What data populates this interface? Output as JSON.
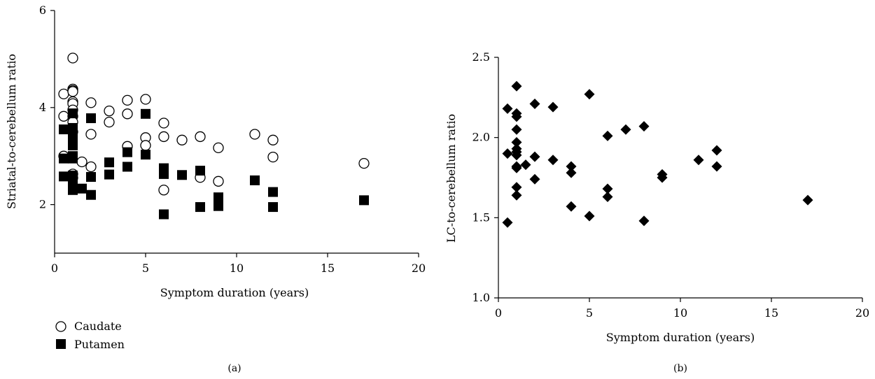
{
  "chart_data": [
    {
      "type": "scatter",
      "panel_label": "(a)",
      "title": "",
      "xlabel": "Symptom duration (years)",
      "ylabel": "Striatal-to-cerebellum ratio",
      "xlim": [
        0,
        20
      ],
      "ylim": [
        1,
        6
      ],
      "xticks": [
        0,
        5,
        10,
        15,
        20
      ],
      "yticks": [
        2,
        4,
        6
      ],
      "legend_position": "bottom-left",
      "series": [
        {
          "name": "Caudate",
          "marker": "open-circle",
          "points": [
            [
              0.5,
              4.28
            ],
            [
              0.5,
              3.82
            ],
            [
              0.5,
              3.0
            ],
            [
              1,
              5.02
            ],
            [
              1,
              4.38
            ],
            [
              1,
              4.35
            ],
            [
              1,
              4.33
            ],
            [
              1,
              4.12
            ],
            [
              1,
              4.08
            ],
            [
              1,
              3.95
            ],
            [
              1,
              3.82
            ],
            [
              1,
              3.7
            ],
            [
              1,
              3.5
            ],
            [
              1,
              2.63
            ],
            [
              1,
              2.55
            ],
            [
              1.5,
              2.88
            ],
            [
              2,
              4.1
            ],
            [
              2,
              3.45
            ],
            [
              2,
              2.78
            ],
            [
              3,
              3.93
            ],
            [
              3,
              3.7
            ],
            [
              4,
              4.15
            ],
            [
              4,
              3.87
            ],
            [
              4,
              3.2
            ],
            [
              5,
              4.17
            ],
            [
              5,
              3.38
            ],
            [
              5,
              3.22
            ],
            [
              6,
              3.68
            ],
            [
              6,
              3.4
            ],
            [
              6,
              2.3
            ],
            [
              7,
              3.33
            ],
            [
              8,
              3.4
            ],
            [
              8,
              2.56
            ],
            [
              9,
              3.17
            ],
            [
              9,
              2.48
            ],
            [
              11,
              3.45
            ],
            [
              12,
              3.33
            ],
            [
              12,
              2.98
            ],
            [
              17,
              2.85
            ]
          ]
        },
        {
          "name": "Putamen",
          "marker": "filled-square",
          "points": [
            [
              0.5,
              3.55
            ],
            [
              0.5,
              2.95
            ],
            [
              0.5,
              2.58
            ],
            [
              1,
              3.88
            ],
            [
              1,
              3.58
            ],
            [
              1,
              3.48
            ],
            [
              1,
              3.35
            ],
            [
              1,
              3.22
            ],
            [
              1,
              3.0
            ],
            [
              1,
              2.95
            ],
            [
              1,
              2.6
            ],
            [
              1,
              2.55
            ],
            [
              1,
              2.42
            ],
            [
              1,
              2.3
            ],
            [
              1.5,
              2.33
            ],
            [
              2,
              3.78
            ],
            [
              2,
              2.57
            ],
            [
              2,
              2.2
            ],
            [
              3,
              2.87
            ],
            [
              3,
              2.62
            ],
            [
              4,
              3.08
            ],
            [
              4,
              2.78
            ],
            [
              5,
              3.87
            ],
            [
              5,
              3.03
            ],
            [
              6,
              2.75
            ],
            [
              6,
              2.63
            ],
            [
              6,
              1.8
            ],
            [
              7,
              2.61
            ],
            [
              8,
              2.7
            ],
            [
              8,
              1.95
            ],
            [
              9,
              2.15
            ],
            [
              9,
              1.97
            ],
            [
              11,
              2.5
            ],
            [
              12,
              2.26
            ],
            [
              12,
              1.95
            ],
            [
              17,
              2.09
            ]
          ]
        }
      ]
    },
    {
      "type": "scatter",
      "panel_label": "(b)",
      "title": "",
      "xlabel": "Symptom duration (years)",
      "ylabel": "LC-to-cerebellum ratio",
      "xlim": [
        0,
        20
      ],
      "ylim": [
        1.0,
        2.5
      ],
      "xticks": [
        0,
        5,
        10,
        15,
        20
      ],
      "yticks": [
        "1.0",
        "1.5",
        "2.0",
        "2.5"
      ],
      "series": [
        {
          "marker": "filled-diamond",
          "points": [
            [
              0.5,
              2.18
            ],
            [
              0.5,
              1.9
            ],
            [
              0.5,
              1.47
            ],
            [
              1,
              2.32
            ],
            [
              1,
              2.15
            ],
            [
              1,
              2.13
            ],
            [
              1,
              2.05
            ],
            [
              1,
              1.97
            ],
            [
              1,
              1.93
            ],
            [
              1,
              1.91
            ],
            [
              1,
              1.89
            ],
            [
              1,
              1.82
            ],
            [
              1,
              1.81
            ],
            [
              1,
              1.69
            ],
            [
              1,
              1.64
            ],
            [
              1.5,
              1.83
            ],
            [
              2,
              2.21
            ],
            [
              2,
              1.88
            ],
            [
              2,
              1.74
            ],
            [
              3,
              2.19
            ],
            [
              3,
              1.86
            ],
            [
              4,
              1.82
            ],
            [
              4,
              1.78
            ],
            [
              4,
              1.57
            ],
            [
              5,
              2.27
            ],
            [
              5,
              1.51
            ],
            [
              6,
              2.01
            ],
            [
              6,
              1.68
            ],
            [
              6,
              1.63
            ],
            [
              7,
              2.05
            ],
            [
              8,
              2.07
            ],
            [
              8,
              1.48
            ],
            [
              9,
              1.77
            ],
            [
              9,
              1.75
            ],
            [
              11,
              1.86
            ],
            [
              12,
              1.92
            ],
            [
              12,
              1.82
            ],
            [
              17,
              1.61
            ]
          ]
        }
      ]
    }
  ]
}
